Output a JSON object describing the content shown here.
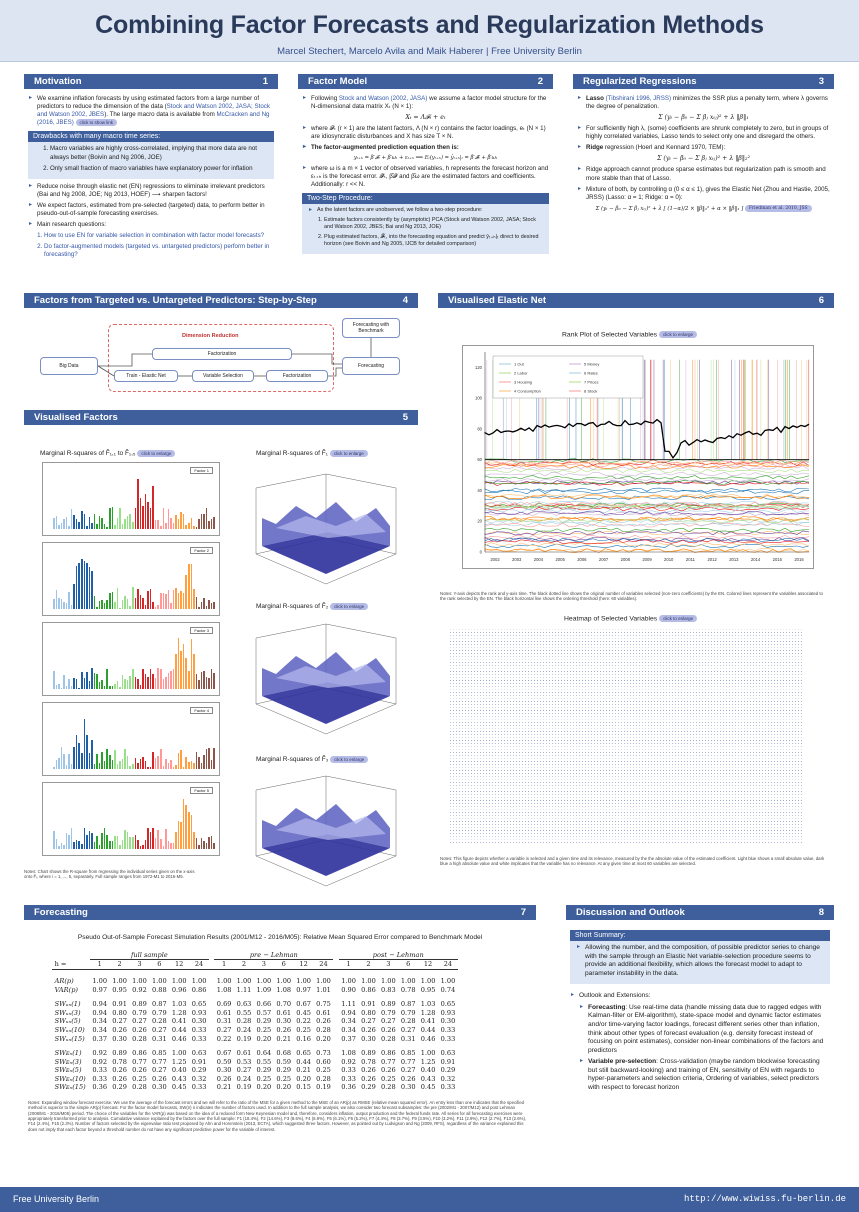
{
  "header": {
    "title": "Combining Factor Forecasts and Regularization Methods",
    "authors": "Marcel Stechert, Marcelo Avila and Maik Haberer | Free University Berlin"
  },
  "motivation": {
    "title": "Motivation",
    "num": "1",
    "p1": "We examine inflation forecasts by using estimated factors from a large number of predictors to reduce the dimension of the data (",
    "p1_cite": "Stock and Watson 2002, JASA; Stock and Watson 2002, JBES",
    "p1_b": "). The large macro data is available from ",
    "p1_cite2": "McCracken and Ng (2016, JBES)",
    "btn": "click to show link",
    "box_title": "Drawbacks with many macro time series:",
    "box_items": [
      "Macro variables are highly cross-correlated, implying that more data are not always better (Boivin and Ng 2006, JOE)",
      "Only small fraction of macro variables have explanatory power for inflation"
    ],
    "p2": "Reduce noise through elastic net (EN) regressions to eliminate irrelevant predictors (Bai and Ng 2008, JOE; Ng 2013, HOEF) ⟶ sharpen factors!",
    "p3": "We expect factors, estimated from pre-selected (targeted) data, to perform better in pseudo-out-of-sample forecasting exercises.",
    "p4": "Main research questions:",
    "questions": [
      "How to use EN for variable selection in combination with factor model forecasts?",
      "Do factor-augmented models (targeted vs. untargeted predictors) perform better in forecasting?"
    ]
  },
  "factor_model": {
    "title": "Factor Model",
    "num": "2",
    "p1a": "Following ",
    "p1_cite": "Stock and Watson (2002, JASA)",
    "p1b": " we assume a factor model structure for the N-dimensional data matrix Xₜ (N × 1):",
    "eq1": "Xₜ = Λ𝓕ₜ + eₜ",
    "p2": "where 𝓕ₜ (r × 1) are the latent factors, Λ (N × r) contains the factor loadings, eₜ (N × 1) are idiosyncratic disturbances and X has size T × N.",
    "p3": "The factor-augmented prediction equation then is:",
    "eq2": "yₜ₊ₕ = β′𝓕ₜ + β′ωₜ + εₜ₊ₕ  ⟹  Eₜ(yₜ₊ₕ) = ŷₜ₊ₕ|ₜ = β̂′𝓕̂ₜ + β̂′ωₜ",
    "p4": "where ω is a m × 1 vector of observed variables, h represents the forecast horizon and εₜ₊ₕ is the forecast error. 𝓕̂ₜ, β̂𝓕 and β̂ω are the estimated factors and coefficients. Additionally: r << N.",
    "box_title": "Two-Step Procedure:",
    "box_intro": "As the latent factors are unobserved, we follow a two-step procedure:",
    "box_items": [
      "Estimate factors consistently by (asymptotic) PCA (Stock and Watson 2002, JASA; Stock and Watson 2002, JBES; Bai and Ng 2013, JOE)",
      "Plug estimated factors, 𝓕̂ₜ, into the forecasting equation and predict ŷₜ₊ₕ|ₜ direct to desired horizon (see Boivin and Ng 2005, IJCB for detailed comparison)"
    ]
  },
  "regularized": {
    "title": "Regularized Regressions",
    "num": "3",
    "p1a": "Lasso",
    "p1_cite": " (Tibshirani 1996, JRSS)",
    "p1b": " minimizes the SSR plus a penalty term, where λ governs the degree of penalization.",
    "eq1": "Σ (yₜ − β₀ − Σ βⱼ xₜⱼ)² + λ ‖β‖₁",
    "p2": "For sufficiently high λ, (some) coefficients are shrunk completely to zero, but in groups of highly correlated variables, Lasso tends to select only one and disregard the others.",
    "p3a": "Ridge",
    "p3b": " regression (Hoerl and Kennard 1970, TEM):",
    "eq2": "Σ (yₜ − β₀ − Σ βⱼ xₜⱼ)² + λ ‖β‖₂²",
    "p4": "Ridge approach cannot produce sparse estimates but regularization path is smooth and more stable than that of Lasso.",
    "p5": "Mixture of both, by controlling α (0 ≤ α ≤ 1), gives the Elastic Net (Zhou and Hastie, 2005, JRSS) (Lasso: α = 1; Ridge: α = 0):",
    "eq3": "Σ (yₜ − β₀ − Σ βⱼ xₜⱼ)² + λ [ (1−α)/2 × ‖β‖₂² + α × ‖β‖₁ ]",
    "btn": "Friedman et al. 2010, JSS"
  },
  "steps": {
    "title": "Factors from Targeted vs. Untargeted Predictors: Step-by-Step",
    "num": "4",
    "dim_red": "Dimension Reduction",
    "big_data": "Big Data",
    "factorization1": "Factorization",
    "train": "Train - Elastic Net",
    "var_sel": "Variable Selection",
    "factorization2": "Factorization",
    "forecasting": "Forecasting",
    "bench": "Forecasting with Benchmark"
  },
  "visual_factors": {
    "title": "Visualised Factors",
    "num": "5",
    "t_left": "Marginal R-squares of F̂₁,₁ to F̂₁,₅",
    "t_r1": "Marginal R-squares of F̂₁",
    "t_r2": "Marginal R-squares of F̂₂",
    "t_r3": "Marginal R-squares of F̂₃",
    "btn": "click to enlarge",
    "factor_labels": [
      "Factor 1",
      "Factor 2",
      "Factor 3",
      "Factor 4",
      "Factor 5"
    ],
    "note": "Notes: Chart shows the R-square from regressing the individual series given on the x-axis onto F̂ᵢ, where i = 1, ..., 5, separately. Full sample ranges from 1972-M1 to 2016-M5."
  },
  "visual_en": {
    "title": "Visualised Elastic Net",
    "num": "6",
    "rank_title": "Rank Plot of Selected Variables",
    "heat_title": "Heatmap of Selected Variables",
    "btn": "click to enlarge",
    "years": [
      "2002",
      "2003",
      "2004",
      "2005",
      "2006",
      "2007",
      "2008",
      "2009",
      "2010",
      "2011",
      "2012",
      "2013",
      "2014",
      "2015",
      "2016"
    ],
    "yticks": [
      "120",
      "100",
      "80",
      "60",
      "40",
      "20",
      "0"
    ],
    "rank_note": "Notes: Y-axis depicts the rank and y-axis time. The black dotted line shows the original number of variables selected (non-zero coefficients) by the EN. Colored lines represent the variables associated to the rank selected by the EN. The black horizontal line shows the ordering threshold (here: 60 variables).",
    "heat_note": "Notes: This figure depicts whether a variable is selected and a given time and its relevance, measured by the the absolute value of the estimated coefficient. Light blue shows a small absolute value, dark blue a high absolute value and white implicates that the variable has no relevance. At any given time at most 60 variables are selected.",
    "legend": [
      "1 Out",
      "2 Labor",
      "3 Housing",
      "4 Consumption",
      "5 Money",
      "6 Rates",
      "7 Prices",
      "8 Stock"
    ]
  },
  "forecasting": {
    "title": "Forecasting",
    "num": "7",
    "table_title": "Pseudo Out-of-Sample Forecast Simulation Results (2001/M12 - 2016/M05): Relative Mean Squared Error compared to Benchmark Model",
    "groups": [
      "full sample",
      "pre − Lehman",
      "post − Lehman"
    ],
    "h_label": "h =",
    "horizons": [
      "1",
      "2",
      "3",
      "6",
      "12",
      "24"
    ],
    "rows": [
      {
        "label": "AR(p)",
        "full": [
          "1.00",
          "1.00",
          "1.00",
          "1.00",
          "1.00",
          "1.00"
        ],
        "pre": [
          "1.00",
          "1.00",
          "1.00",
          "1.00",
          "1.00",
          "1.00"
        ],
        "post": [
          "1.00",
          "1.00",
          "1.00",
          "1.00",
          "1.00",
          "1.00"
        ]
      },
      {
        "label": "VAR(p)",
        "full": [
          "0.97",
          "0.95",
          "0.92",
          "0.88",
          "0.96",
          "0.86"
        ],
        "pre": [
          "1.08",
          "1.11",
          "1.09",
          "1.08",
          "0.97",
          "1.01"
        ],
        "post": [
          "0.90",
          "0.86",
          "0.83",
          "0.78",
          "0.95",
          "0.74"
        ]
      },
      {
        "label": "SWᵤₙ(1)",
        "full": [
          "0.94",
          "0.91",
          "0.89",
          "0.87",
          "1.03",
          "0.65"
        ],
        "pre": [
          "0.69",
          "0.63",
          "0.66",
          "0.70",
          "0.67",
          "0.75"
        ],
        "post": [
          "1.11",
          "0.91",
          "0.89",
          "0.87",
          "1.03",
          "0.65"
        ]
      },
      {
        "label": "SWᵤₙ(3)",
        "full": [
          "0.94",
          "0.80",
          "0.79",
          "0.79",
          "1.28",
          "0.93"
        ],
        "pre": [
          "0.61",
          "0.55",
          "0.57",
          "0.61",
          "0.45",
          "0.61"
        ],
        "post": [
          "0.94",
          "0.80",
          "0.79",
          "0.79",
          "1.28",
          "0.93"
        ]
      },
      {
        "label": "SWᵤₙ(5)",
        "full": [
          "0.34",
          "0.27",
          "0.27",
          "0.28",
          "0.41",
          "0.30"
        ],
        "pre": [
          "0.31",
          "0.28",
          "0.29",
          "0.30",
          "0.22",
          "0.26"
        ],
        "post": [
          "0.34",
          "0.27",
          "0.27",
          "0.28",
          "0.41",
          "0.30"
        ]
      },
      {
        "label": "SWᵤₙ(10)",
        "full": [
          "0.34",
          "0.26",
          "0.26",
          "0.27",
          "0.44",
          "0.33"
        ],
        "pre": [
          "0.27",
          "0.24",
          "0.25",
          "0.26",
          "0.25",
          "0.28"
        ],
        "post": [
          "0.34",
          "0.26",
          "0.26",
          "0.27",
          "0.44",
          "0.33"
        ]
      },
      {
        "label": "SWᵤₙ(15)",
        "full": [
          "0.37",
          "0.30",
          "0.28",
          "0.31",
          "0.46",
          "0.33"
        ],
        "pre": [
          "0.22",
          "0.19",
          "0.20",
          "0.21",
          "0.16",
          "0.20"
        ],
        "post": [
          "0.37",
          "0.30",
          "0.28",
          "0.31",
          "0.46",
          "0.33"
        ]
      },
      {
        "label": "SWᴇₙ(1)",
        "full": [
          "0.92",
          "0.89",
          "0.86",
          "0.85",
          "1.00",
          "0.63"
        ],
        "pre": [
          "0.67",
          "0.61",
          "0.64",
          "0.68",
          "0.65",
          "0.73"
        ],
        "post": [
          "1.08",
          "0.89",
          "0.86",
          "0.85",
          "1.00",
          "0.63"
        ]
      },
      {
        "label": "SWᴇₙ(3)",
        "full": [
          "0.92",
          "0.78",
          "0.77",
          "0.77",
          "1.25",
          "0.91"
        ],
        "pre": [
          "0.59",
          "0.53",
          "0.55",
          "0.59",
          "0.44",
          "0.60"
        ],
        "post": [
          "0.92",
          "0.78",
          "0.77",
          "0.77",
          "1.25",
          "0.91"
        ]
      },
      {
        "label": "SWᴇₙ(5)",
        "full": [
          "0.33",
          "0.26",
          "0.26",
          "0.27",
          "0.40",
          "0.29"
        ],
        "pre": [
          "0.30",
          "0.27",
          "0.29",
          "0.29",
          "0.21",
          "0.25"
        ],
        "post": [
          "0.33",
          "0.26",
          "0.26",
          "0.27",
          "0.40",
          "0.29"
        ]
      },
      {
        "label": "SWᴇₙ(10)",
        "full": [
          "0.33",
          "0.26",
          "0.25",
          "0.26",
          "0.43",
          "0.32"
        ],
        "pre": [
          "0.26",
          "0.24",
          "0.25",
          "0.25",
          "0.20",
          "0.28"
        ],
        "post": [
          "0.33",
          "0.26",
          "0.25",
          "0.26",
          "0.43",
          "0.32"
        ]
      },
      {
        "label": "SWᴇₙ(15)",
        "full": [
          "0.36",
          "0.29",
          "0.28",
          "0.30",
          "0.45",
          "0.33"
        ],
        "pre": [
          "0.21",
          "0.19",
          "0.20",
          "0.20",
          "0.15",
          "0.19"
        ],
        "post": [
          "0.36",
          "0.29",
          "0.28",
          "0.30",
          "0.45",
          "0.33"
        ]
      }
    ],
    "note": "Notes: Expanding window forecast exercise. We use the average of the forecast errors and we will refer to the ratio of the MSE for a given method to the MSE of an AR(p) as RMSE (relative mean squared error). An entry less than one indicates that the specified method is superior to the simple AR(p) forecast. For the factor model forecasts, SW(n) n indicates the number of factors used. In addition to the full sample analysis, we also consider two forecast subsamples: the pre (2002/M1 - 2007/M12) and post Lehman (2008/M1 - 2016/M05) period. The choice of the variables for the VAR(p) was based on the idea of a reduced form New Keynesian model and, therefore, considers inflation, output production and the federal funds rate. All series for all forecasting exercises were appropriately transformed prior to analysis. Cumulative variance explained by the factors over the full sample: F1 (18.4%), F2 (14.6%), F3 (8.6%), F4 (6.9%), F5 (6.1%), F6 (5.2%), F7 (4.4%), F8 (3.7%), F9 (3.5%), F10 (3.2%), F11 (2.9%), F12 (2.7%), F13 (2.6%), F14 (2.4%), F15 (2.3%). Number of factors selected by the eigenvalue ratio test proposed by Ahn and Horenstein (2013, ECTA), which suggested three factors. However, as pointed out by Ludvigson and Ng (2009, RFS), regardless of the variance explained this does not imply that each factor beyond a threshold number do not have any significant predictive power for the variable of interest."
  },
  "discussion": {
    "title": "Discussion and Outlook",
    "num": "8",
    "box_title": "Short Summary:",
    "summary": "Allowing the number, and the composition, of possible predictor series to change with the sample through an Elastic Net variable-selection procedure seems to provide an additional flexibility, which allows the forecast model to adapt to parameter instability in the data.",
    "outlook": "Outlook and Extensions:",
    "items": [
      {
        "bold": "Forecasting",
        "text": ": Use real-time data (handle missing data due to ragged edges with Kalman-filter or EM-algorithm), state-space model and dynamic factor estimates and/or time-varying factor loadings, forecast different series other than inflation, think about other types of forecast evaluation (e.g. density forecast instead of focusing on point estimates), consider non-linear combinations of the factors and predictors"
      },
      {
        "bold": "Variable pre-selection",
        "text": ": Cross-validation (maybe random blockwise forecasting but still backward-looking) and training of EN, sensitivity of EN with regards to hyper-parameters and selection criteria, Ordering of variables, select predictors with respect to forecast horizon"
      }
    ]
  },
  "footer": {
    "left": "Free University Berlin",
    "right": "http://www.wiwiss.fu-berlin.de"
  },
  "colors": {
    "accent": "#3e5f9c",
    "box_bg": "#dce6f4",
    "header_bg": "#dde5f2"
  }
}
